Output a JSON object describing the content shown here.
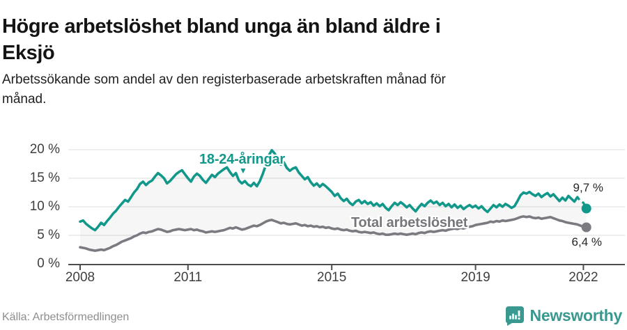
{
  "header": {
    "title_line1": "Högre arbetslöshet bland unga än bland äldre i",
    "title_line2": "Eksjö",
    "subtitle": "Arbetssökande som andel av den registerbaserade arbetskraften månad för månad."
  },
  "footer": {
    "source": "Källa: Arbetsförmedlingen",
    "brand": "Newsworthy"
  },
  "icons": {
    "marker_down": "▼"
  },
  "colors": {
    "youth": "#12988b",
    "total": "#7a7a80",
    "grid": "#e3e3e3",
    "axis": "#4d4d4d",
    "fill_between": "rgba(140,140,140,0.08)",
    "brand": "#39988f",
    "value_label": "#262626"
  },
  "chart_data": {
    "type": "line",
    "title": "Högre arbetslöshet bland unga än bland äldre i Eksjö",
    "xlabel": "",
    "ylabel": "",
    "x_start": "2008-01",
    "x_end": "2022-02",
    "x_frequency": "monthly",
    "ylim": [
      0,
      21
    ],
    "grid": true,
    "y_ticks": [
      {
        "label": "0 %",
        "value": 0
      },
      {
        "label": "5 %",
        "value": 5
      },
      {
        "label": "10 %",
        "value": 10
      },
      {
        "label": "15 %",
        "value": 15
      },
      {
        "label": "20 %",
        "value": 20
      }
    ],
    "x_ticks": [
      {
        "label": "2008",
        "month_index": 0
      },
      {
        "label": "2011",
        "month_index": 36
      },
      {
        "label": "2015",
        "month_index": 84
      },
      {
        "label": "2019",
        "month_index": 132
      },
      {
        "label": "2022",
        "month_index": 168
      }
    ],
    "series": [
      {
        "name": "18-24-åringar",
        "color": "#12988b",
        "end_label": "9,7 %",
        "end_value": 9.7,
        "dashed_tail_from": 166,
        "values": [
          7.4,
          7.6,
          7.0,
          6.6,
          6.2,
          5.9,
          6.5,
          7.2,
          6.8,
          7.5,
          8.1,
          8.8,
          9.3,
          10.0,
          10.6,
          11.2,
          10.9,
          11.7,
          12.5,
          13.1,
          14.0,
          14.4,
          13.8,
          14.3,
          14.6,
          15.3,
          15.9,
          15.5,
          15.0,
          14.1,
          14.5,
          15.1,
          15.7,
          16.1,
          16.4,
          15.7,
          15.0,
          14.4,
          15.3,
          15.8,
          15.4,
          14.7,
          14.2,
          14.9,
          15.6,
          15.2,
          15.8,
          16.2,
          16.6,
          16.9,
          16.1,
          15.4,
          15.9,
          14.6,
          14.1,
          14.5,
          13.9,
          13.6,
          14.2,
          13.6,
          14.5,
          15.8,
          17.3,
          19.0,
          19.9,
          19.3,
          18.0,
          17.4,
          17.8,
          16.8,
          16.3,
          16.7,
          16.9,
          16.0,
          15.4,
          14.8,
          15.2,
          14.3,
          13.7,
          14.1,
          13.5,
          14.0,
          13.6,
          13.1,
          12.6,
          11.9,
          12.3,
          11.5,
          11.0,
          11.4,
          10.7,
          10.3,
          10.9,
          11.2,
          10.6,
          11.0,
          10.5,
          10.8,
          10.2,
          10.6,
          10.1,
          10.5,
          9.8,
          9.4,
          10.1,
          10.7,
          10.3,
          10.8,
          10.4,
          9.9,
          10.3,
          9.7,
          9.2,
          9.9,
          10.5,
          10.1,
          10.7,
          11.1,
          10.6,
          10.9,
          10.3,
          10.7,
          10.1,
          10.5,
          9.9,
          10.4,
          9.8,
          10.2,
          9.6,
          10.0,
          10.3,
          9.9,
          10.2,
          9.7,
          10.1,
          9.5,
          9.1,
          9.7,
          10.3,
          9.9,
          10.4,
          10.0,
          10.5,
          10.2,
          9.8,
          10.1,
          11.0,
          12.0,
          12.5,
          12.3,
          12.6,
          12.2,
          11.9,
          12.3,
          11.7,
          12.1,
          12.4,
          11.8,
          12.2,
          11.6,
          11.0,
          11.6,
          11.1,
          11.9,
          11.4,
          10.9,
          11.7,
          11.0,
          10.7,
          9.7
        ]
      },
      {
        "name": "Total arbetslöshet",
        "color": "#7a7a80",
        "end_label": "6,4 %",
        "end_value": 6.4,
        "values": [
          2.9,
          2.8,
          2.7,
          2.5,
          2.4,
          2.3,
          2.4,
          2.5,
          2.4,
          2.6,
          2.8,
          3.1,
          3.3,
          3.6,
          3.9,
          4.1,
          4.3,
          4.5,
          4.8,
          5.0,
          5.3,
          5.5,
          5.4,
          5.6,
          5.7,
          5.9,
          6.1,
          6.0,
          5.8,
          5.6,
          5.7,
          5.9,
          6.0,
          6.1,
          6.0,
          5.9,
          6.0,
          6.1,
          5.9,
          6.0,
          5.8,
          5.7,
          5.5,
          5.6,
          5.7,
          5.6,
          5.7,
          5.8,
          5.9,
          6.1,
          6.3,
          6.2,
          6.4,
          6.2,
          6.0,
          6.1,
          6.3,
          6.5,
          6.7,
          6.6,
          6.8,
          7.1,
          7.4,
          7.6,
          7.7,
          7.5,
          7.3,
          7.1,
          7.2,
          7.0,
          6.9,
          7.0,
          7.1,
          6.9,
          6.7,
          6.8,
          6.6,
          6.7,
          6.5,
          6.6,
          6.4,
          6.5,
          6.3,
          6.4,
          6.2,
          6.1,
          6.2,
          6.0,
          5.9,
          6.0,
          5.8,
          5.7,
          5.8,
          5.6,
          5.5,
          5.6,
          5.5,
          5.4,
          5.5,
          5.3,
          5.2,
          5.3,
          5.1,
          5.1,
          5.2,
          5.3,
          5.2,
          5.3,
          5.2,
          5.1,
          5.2,
          5.3,
          5.2,
          5.4,
          5.5,
          5.4,
          5.6,
          5.7,
          5.6,
          5.7,
          5.8,
          5.9,
          5.8,
          6.0,
          6.1,
          6.2,
          6.1,
          6.3,
          6.2,
          6.4,
          6.5,
          6.6,
          6.8,
          6.9,
          7.0,
          7.1,
          7.2,
          7.4,
          7.3,
          7.5,
          7.4,
          7.6,
          7.5,
          7.6,
          7.7,
          7.8,
          8.0,
          8.2,
          8.3,
          8.2,
          8.3,
          8.1,
          8.0,
          8.1,
          7.9,
          8.0,
          8.1,
          8.2,
          8.0,
          7.8,
          7.6,
          7.5,
          7.3,
          7.2,
          7.1,
          7.0,
          6.9,
          6.7,
          6.5,
          6.4
        ]
      }
    ]
  }
}
